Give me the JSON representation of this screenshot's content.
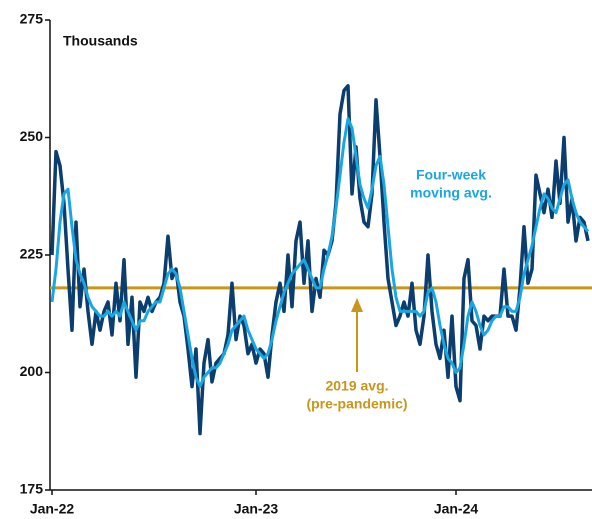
{
  "chart_data": {
    "type": "line",
    "ylabel": "Thousands",
    "categories": [
      "Jan-22",
      null,
      null,
      null,
      null,
      null,
      null,
      null,
      null,
      null,
      null,
      null,
      null,
      null,
      null,
      null,
      null,
      null,
      null,
      null,
      null,
      null,
      null,
      null,
      null,
      null,
      null,
      null,
      null,
      null,
      null,
      null,
      null,
      null,
      null,
      null,
      null,
      null,
      null,
      null,
      null,
      null,
      null,
      null,
      null,
      null,
      null,
      null,
      null,
      null,
      null,
      "Jan-23",
      null,
      null,
      null,
      null,
      null,
      null,
      null,
      null,
      null,
      null,
      null,
      null,
      null,
      null,
      null,
      null,
      null,
      null,
      null,
      null,
      null,
      null,
      null,
      null,
      null,
      null,
      null,
      null,
      null,
      null,
      null,
      null,
      null,
      null,
      null,
      null,
      null,
      null,
      null,
      null,
      null,
      null,
      null,
      null,
      null,
      null,
      null,
      null,
      null,
      "Jan-24",
      null,
      null,
      null,
      null,
      null,
      null,
      null,
      null,
      null,
      null,
      null,
      null,
      null,
      null,
      null,
      null,
      null,
      null,
      null,
      null,
      null,
      null,
      null,
      null,
      null,
      null,
      null,
      null,
      null,
      null,
      null,
      null,
      null
    ],
    "series": [
      {
        "color": "#0b3d6e",
        "values": [
          225,
          247,
          244,
          236,
          222,
          209,
          232,
          214,
          222,
          213,
          206,
          213,
          209,
          213,
          215,
          208,
          219,
          211,
          224,
          206,
          216,
          199,
          215,
          213,
          216,
          213,
          215,
          216,
          219,
          229,
          220,
          222,
          215,
          212,
          205,
          197,
          205,
          187,
          202,
          207,
          198,
          202,
          203,
          204,
          208,
          219,
          207,
          212,
          210,
          204,
          206,
          202,
          205,
          204,
          199,
          208,
          215,
          219,
          213,
          225,
          214,
          228,
          232,
          219,
          228,
          213,
          220,
          216,
          226,
          225,
          228,
          236,
          255,
          260,
          261,
          238,
          248,
          237,
          232,
          231,
          238,
          258,
          246,
          232,
          220,
          215,
          210,
          212,
          215,
          212,
          219,
          209,
          206,
          212,
          225,
          213,
          206,
          203,
          209,
          199,
          212,
          197,
          194,
          220,
          224,
          211,
          210,
          205,
          212,
          211,
          212,
          212,
          212,
          222,
          212,
          212,
          209,
          218,
          231,
          219,
          222,
          242,
          238,
          234,
          239,
          233,
          245,
          236,
          250,
          232,
          237,
          228,
          233,
          232,
          228
        ]
      },
      {
        "color": "#1aa6e0",
        "values": [
          215,
          222,
          232,
          238,
          239,
          231,
          224,
          221,
          219,
          216,
          214,
          213,
          212,
          212,
          213,
          212,
          213,
          212,
          215,
          213,
          211,
          209,
          211,
          211,
          213,
          214,
          215,
          215,
          218,
          221,
          222,
          221,
          218,
          213,
          208,
          203,
          199,
          197,
          199,
          200,
          201,
          201,
          202,
          204,
          206,
          209,
          210,
          211,
          212,
          209,
          207,
          205,
          204,
          203,
          204,
          207,
          211,
          214,
          217,
          219,
          221,
          222,
          223,
          224,
          222,
          220,
          218,
          218,
          222,
          225,
          229,
          235,
          242,
          249,
          254,
          252,
          246,
          240,
          237,
          235,
          239,
          244,
          246,
          240,
          231,
          222,
          216,
          213,
          213,
          213,
          213,
          213,
          212,
          213,
          217,
          218,
          215,
          210,
          206,
          203,
          202,
          200,
          201,
          206,
          212,
          215,
          213,
          210,
          208,
          209,
          211,
          212,
          212,
          214,
          214,
          213,
          213,
          216,
          221,
          224,
          227,
          231,
          235,
          238,
          237,
          235,
          234,
          237,
          240,
          241,
          237,
          234,
          232,
          231,
          230
        ]
      }
    ],
    "reference": {
      "value": 218,
      "color": "#c9961a"
    },
    "annotations": [
      {
        "lines": [
          "Four-week",
          "moving avg."
        ],
        "color": "#1aa6e0"
      },
      {
        "lines": [
          "2019 avg.",
          "(pre-pandemic)"
        ],
        "color": "#c9961a"
      }
    ],
    "ylim": [
      175,
      275
    ],
    "yticks": [
      175,
      200,
      225,
      250,
      275
    ]
  }
}
